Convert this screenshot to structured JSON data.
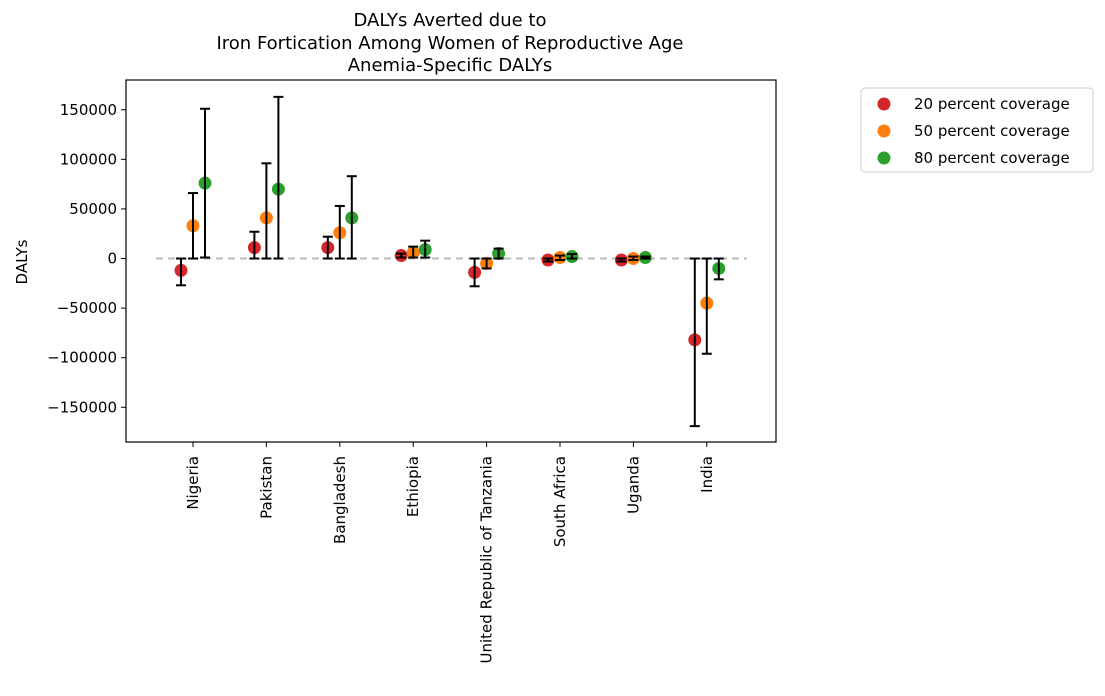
{
  "chart_data": {
    "type": "scatter",
    "title": [
      "DALYs Averted due to",
      "Iron Fortication Among Women of Reproductive Age",
      "Anemia-Specific DALYs"
    ],
    "xlabel": "",
    "ylabel": "DALYs",
    "ylim": [
      -185000,
      180000
    ],
    "yticks": [
      -150000,
      -100000,
      -50000,
      0,
      50000,
      100000,
      150000
    ],
    "ytick_labels": [
      "−150000",
      "−100000",
      "−50000",
      "0",
      "50000",
      "100000",
      "150000"
    ],
    "categories": [
      "Nigeria",
      "Pakistan",
      "Bangladesh",
      "Ethiopia",
      "United Republic of Tanzania",
      "South Africa",
      "Uganda",
      "India"
    ],
    "zero_line": {
      "y": 0,
      "style": "dashed",
      "color": "#bbbbbb"
    },
    "legend_position": "outside-right",
    "series": [
      {
        "name": "20 percent coverage",
        "color": "#d62728",
        "values": [
          -12000,
          11000,
          11000,
          3000,
          -14000,
          -1500,
          -1500,
          -82000
        ],
        "lower": [
          -27000,
          0,
          0,
          1000,
          -28000,
          -3000,
          -3000,
          -169000
        ],
        "upper": [
          0,
          27000,
          22000,
          5000,
          0,
          0,
          0,
          0
        ]
      },
      {
        "name": "50 percent coverage",
        "color": "#ff7f0e",
        "values": [
          33000,
          41000,
          26000,
          6000,
          -5000,
          1000,
          0,
          -45000
        ],
        "lower": [
          0,
          0,
          0,
          1000,
          -10000,
          -1500,
          -1500,
          -96000
        ],
        "upper": [
          66000,
          96000,
          53000,
          12000,
          0,
          3000,
          2000,
          0
        ]
      },
      {
        "name": "80 percent coverage",
        "color": "#2ca02c",
        "values": [
          76000,
          70000,
          41000,
          9000,
          5000,
          2000,
          1000,
          -10000
        ],
        "lower": [
          1000,
          0,
          0,
          1000,
          0,
          0,
          0,
          -21000
        ],
        "upper": [
          151000,
          163000,
          83000,
          18000,
          10000,
          4500,
          2000,
          0
        ]
      }
    ]
  }
}
